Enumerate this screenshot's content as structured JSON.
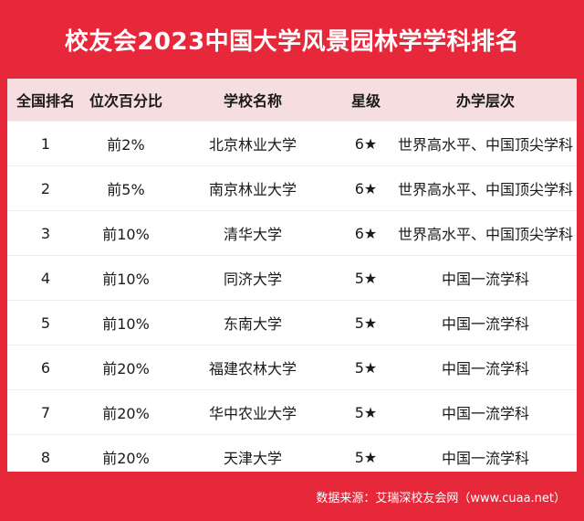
{
  "title": "校友会2023中国大学风景园林学学科排名",
  "table": {
    "headers": [
      "全国排名",
      "位次百分比",
      "学校名称",
      "星级",
      "办学层次"
    ],
    "rows": [
      [
        "1",
        "前2%",
        "北京林业大学",
        "6★",
        "世界高水平、中国顶尖学科"
      ],
      [
        "2",
        "前5%",
        "南京林业大学",
        "6★",
        "世界高水平、中国顶尖学科"
      ],
      [
        "3",
        "前10%",
        "清华大学",
        "6★",
        "世界高水平、中国顶尖学科"
      ],
      [
        "4",
        "前10%",
        "同济大学",
        "5★",
        "中国一流学科"
      ],
      [
        "5",
        "前10%",
        "东南大学",
        "5★",
        "中国一流学科"
      ],
      [
        "6",
        "前20%",
        "福建农林大学",
        "5★",
        "中国一流学科"
      ],
      [
        "7",
        "前20%",
        "华中农业大学",
        "5★",
        "中国一流学科"
      ],
      [
        "8",
        "前20%",
        "天津大学",
        "5★",
        "中国一流学科"
      ]
    ]
  },
  "footer": "数据来源：艾瑞深校友会网（www.cuaa.net）",
  "colors": {
    "background": "#e6283a",
    "header_row": "#f6dde0",
    "card": "#ffffff"
  }
}
